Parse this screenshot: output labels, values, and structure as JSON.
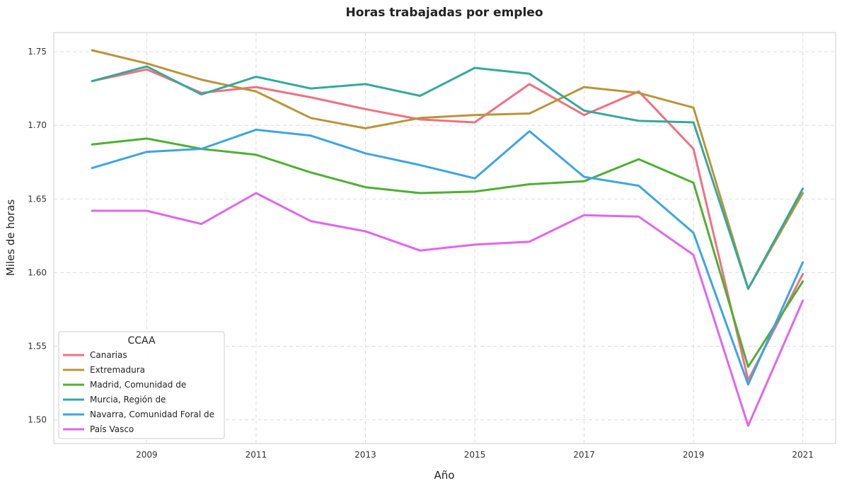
{
  "chart_data": {
    "type": "line",
    "title": "Horas trabajadas por empleo",
    "xlabel": "Año",
    "ylabel": "Miles de horas",
    "x": [
      2008,
      2009,
      2010,
      2011,
      2012,
      2013,
      2014,
      2015,
      2016,
      2017,
      2018,
      2019,
      2020,
      2021
    ],
    "xticks": [
      "2009",
      "2011",
      "2013",
      "2015",
      "2017",
      "2019",
      "2021"
    ],
    "yticks": [
      "1.50",
      "1.55",
      "1.60",
      "1.65",
      "1.70",
      "1.75"
    ],
    "xlim": [
      2007.3,
      2021.6
    ],
    "ylim": [
      1.484,
      1.763
    ],
    "grid": true,
    "legend": {
      "title": "CCAA",
      "placement": "lower-left"
    },
    "series": [
      {
        "name": "Canarias",
        "color": "#f1707f",
        "values": [
          1.73,
          1.738,
          1.722,
          1.726,
          1.719,
          1.711,
          1.704,
          1.702,
          1.728,
          1.707,
          1.723,
          1.684,
          1.527,
          1.599
        ]
      },
      {
        "name": "Extremadura",
        "color": "#b99539",
        "values": [
          1.751,
          1.742,
          1.731,
          1.723,
          1.705,
          1.698,
          1.705,
          1.707,
          1.708,
          1.726,
          1.722,
          1.712,
          1.589,
          1.654
        ]
      },
      {
        "name": "Madrid, Comunidad de",
        "color": "#4faf32",
        "values": [
          1.687,
          1.691,
          1.684,
          1.68,
          1.668,
          1.658,
          1.654,
          1.655,
          1.66,
          1.662,
          1.677,
          1.661,
          1.536,
          1.594
        ]
      },
      {
        "name": "Murcia, Región de",
        "color": "#34a99a",
        "values": [
          1.73,
          1.74,
          1.721,
          1.733,
          1.725,
          1.728,
          1.72,
          1.739,
          1.735,
          1.71,
          1.703,
          1.702,
          1.589,
          1.657
        ]
      },
      {
        "name": "Navarra, Comunidad Foral de",
        "color": "#3da4e6",
        "values": [
          1.671,
          1.682,
          1.684,
          1.697,
          1.693,
          1.681,
          1.673,
          1.664,
          1.696,
          1.665,
          1.659,
          1.627,
          1.524,
          1.607
        ]
      },
      {
        "name": "País Vasco",
        "color": "#e066ee",
        "values": [
          1.642,
          1.642,
          1.633,
          1.654,
          1.635,
          1.628,
          1.615,
          1.619,
          1.621,
          1.639,
          1.638,
          1.612,
          1.496,
          1.581
        ]
      }
    ]
  }
}
